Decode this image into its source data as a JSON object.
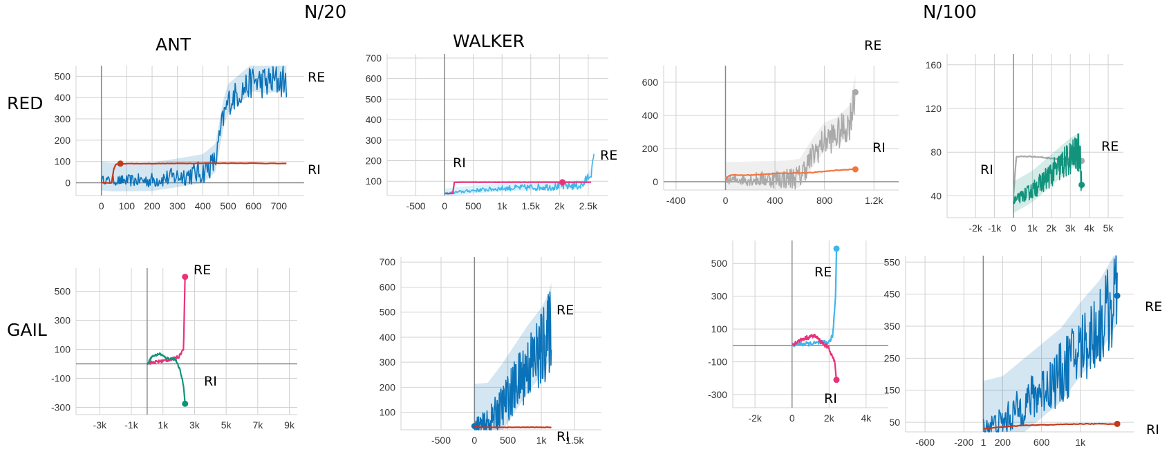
{
  "headers": {
    "n20": "N/20",
    "n100": "N/100",
    "ant": "ANT",
    "walker": "WALKER",
    "red": "RED",
    "gail": "GAIL"
  },
  "colors": {
    "blue": "#0a72b8",
    "light_blue": "#3db6ea",
    "dark_red": "#c4391a",
    "pink": "#e8337a",
    "teal": "#12937c",
    "gray": "#a9a9a9",
    "orange": "#f2753f",
    "grid": "#d0d0d0",
    "axis": "#888888"
  },
  "chart_data": [
    {
      "id": "ant-red",
      "type": "line",
      "xlim": [
        -100,
        800
      ],
      "ylim": [
        -60,
        550
      ],
      "xticks": [
        "0",
        "100",
        "200",
        "300",
        "400",
        "500",
        "600",
        "700"
      ],
      "yticks": [
        "0",
        "100",
        "200",
        "300",
        "400",
        "500"
      ],
      "annotations": [
        "RE",
        "RI"
      ],
      "series": [
        {
          "label": "RE",
          "color": "blue",
          "noisy": true,
          "noise": 70,
          "marker_x": 75,
          "points": [
            [
              0,
              15
            ],
            [
              40,
              10
            ],
            [
              75,
              10
            ],
            [
              200,
              12
            ],
            [
              300,
              30
            ],
            [
              400,
              50
            ],
            [
              450,
              100
            ],
            [
              480,
              300
            ],
            [
              500,
              380
            ],
            [
              550,
              430
            ],
            [
              600,
              480
            ],
            [
              650,
              470
            ],
            [
              700,
              480
            ],
            [
              730,
              480
            ]
          ]
        },
        {
          "label": "RI",
          "color": "dark_red",
          "noise": 2,
          "marker_x": 75,
          "points": [
            [
              0,
              0
            ],
            [
              45,
              0
            ],
            [
              50,
              85
            ],
            [
              75,
              90
            ],
            [
              200,
              90
            ],
            [
              400,
              92
            ],
            [
              600,
              92
            ],
            [
              730,
              90
            ]
          ]
        }
      ]
    },
    {
      "id": "walker-red",
      "type": "line",
      "xlim": [
        -1000,
        2850
      ],
      "ylim": [
        30,
        720
      ],
      "xticks": [
        "-500",
        "0",
        "500",
        "1k",
        "1.5k",
        "2k",
        "2.5k"
      ],
      "yticks": [
        "100",
        "200",
        "300",
        "400",
        "500",
        "600",
        "700"
      ],
      "annotations": [
        "RI",
        "RE"
      ],
      "series": [
        {
          "label": "RE",
          "color": "light_blue",
          "noisy": true,
          "noise": 20,
          "points": [
            [
              0,
              40
            ],
            [
              500,
              55
            ],
            [
              1000,
              65
            ],
            [
              1500,
              70
            ],
            [
              2000,
              75
            ],
            [
              2400,
              80
            ],
            [
              2550,
              140
            ],
            [
              2600,
              220
            ]
          ]
        },
        {
          "label": "RI",
          "color": "pink",
          "noise": 1,
          "marker_x": 2050,
          "points": [
            [
              0,
              40
            ],
            [
              150,
              40
            ],
            [
              170,
              95
            ],
            [
              1000,
              95
            ],
            [
              2050,
              95
            ],
            [
              2550,
              95
            ]
          ]
        }
      ]
    },
    {
      "id": "n100-red-1",
      "type": "line",
      "xlim": [
        -500,
        1400
      ],
      "ylim": [
        -50,
        700
      ],
      "xticks": [
        "-400",
        "0",
        "400",
        "800",
        "1.2k"
      ],
      "yticks": [
        "0",
        "200",
        "400",
        "600"
      ],
      "annotations": [
        "RE",
        "RI"
      ],
      "series": [
        {
          "label": "RE",
          "color": "gray",
          "noisy": true,
          "noise": 90,
          "marker_x": 1050,
          "points": [
            [
              0,
              10
            ],
            [
              500,
              20
            ],
            [
              600,
              30
            ],
            [
              700,
              150
            ],
            [
              800,
              250
            ],
            [
              900,
              280
            ],
            [
              1000,
              350
            ],
            [
              1050,
              540
            ]
          ]
        },
        {
          "label": "RI",
          "color": "orange",
          "noise": 4,
          "marker_x": 1050,
          "points": [
            [
              0,
              10
            ],
            [
              30,
              40
            ],
            [
              200,
              40
            ],
            [
              400,
              50
            ],
            [
              700,
              55
            ],
            [
              900,
              70
            ],
            [
              1050,
              75
            ]
          ]
        }
      ]
    },
    {
      "id": "n100-red-2",
      "type": "line",
      "xlim": [
        -3500,
        5800
      ],
      "ylim": [
        20,
        170
      ],
      "xticks": [
        "-2k",
        "-1k",
        "0",
        "1k",
        "2k",
        "3k",
        "4k",
        "5k"
      ],
      "yticks": [
        "40",
        "80",
        "120",
        "160"
      ],
      "annotations": [
        "RI",
        "RE"
      ],
      "series": [
        {
          "label": "RI",
          "color": "gray",
          "noise": 1,
          "marker_x": 3600,
          "points": [
            [
              0,
              40
            ],
            [
              150,
              76
            ],
            [
              1000,
              76
            ],
            [
              3600,
              72
            ]
          ]
        },
        {
          "label": "RE",
          "color": "teal",
          "noisy": true,
          "noise": 15,
          "marker_x": 3600,
          "points": [
            [
              0,
              35
            ],
            [
              1000,
              45
            ],
            [
              2000,
              60
            ],
            [
              3000,
              75
            ],
            [
              3500,
              80
            ],
            [
              3600,
              50
            ]
          ]
        }
      ]
    },
    {
      "id": "ant-gail",
      "type": "line",
      "xlim": [
        -4500,
        9500
      ],
      "ylim": [
        -350,
        660
      ],
      "xticks": [
        "-3k",
        "-1k",
        "1k",
        "3k",
        "5k",
        "7k",
        "9k"
      ],
      "yticks": [
        "500",
        "300",
        "100",
        "-100",
        "-300"
      ],
      "annotations": [
        "RE",
        "RI"
      ],
      "series": [
        {
          "label": "RE",
          "color": "pink",
          "noise": 20,
          "marker_x": 2400,
          "points": [
            [
              0,
              5
            ],
            [
              1000,
              20
            ],
            [
              1500,
              30
            ],
            [
              2000,
              50
            ],
            [
              2300,
              100
            ],
            [
              2400,
              600
            ]
          ]
        },
        {
          "label": "RI",
          "color": "teal",
          "noise": 15,
          "marker_x": 2400,
          "points": [
            [
              0,
              0
            ],
            [
              300,
              50
            ],
            [
              800,
              70
            ],
            [
              1200,
              40
            ],
            [
              1800,
              30
            ],
            [
              2100,
              -50
            ],
            [
              2300,
              -150
            ],
            [
              2400,
              -275
            ]
          ]
        }
      ]
    },
    {
      "id": "walker-gail",
      "type": "line",
      "xlim": [
        -1100,
        1900
      ],
      "ylim": [
        30,
        720
      ],
      "xticks": [
        "-500",
        "0",
        "500",
        "1k",
        "1.5k"
      ],
      "yticks": [
        "100",
        "200",
        "300",
        "400",
        "500",
        "600",
        "700"
      ],
      "annotations": [
        "RE",
        "RI"
      ],
      "series": [
        {
          "label": "RE",
          "color": "blue",
          "noisy": true,
          "noise": 140,
          "marker_x": 0,
          "points": [
            [
              0,
              45
            ],
            [
              200,
              50
            ],
            [
              400,
              120
            ],
            [
              600,
              200
            ],
            [
              800,
              280
            ],
            [
              1000,
              350
            ],
            [
              1100,
              400
            ],
            [
              1150,
              450
            ]
          ]
        },
        {
          "label": "RI",
          "color": "dark_red",
          "noise": 2,
          "points": [
            [
              0,
              45
            ],
            [
              100,
              40
            ],
            [
              400,
              40
            ],
            [
              1150,
              40
            ]
          ]
        }
      ]
    },
    {
      "id": "n100-gail-1",
      "type": "line",
      "xlim": [
        -3200,
        5200
      ],
      "ylim": [
        -380,
        640
      ],
      "xticks": [
        "-2k",
        "0",
        "2k",
        "4k"
      ],
      "yticks": [
        "500",
        "300",
        "100",
        "-100",
        "-300"
      ],
      "annotations": [
        "RE",
        "RI"
      ],
      "series": [
        {
          "label": "RE",
          "color": "light_blue",
          "noise": 25,
          "marker_x": 2400,
          "points": [
            [
              0,
              5
            ],
            [
              1000,
              10
            ],
            [
              2000,
              20
            ],
            [
              2200,
              60
            ],
            [
              2350,
              300
            ],
            [
              2400,
              590
            ]
          ]
        },
        {
          "label": "RI",
          "color": "pink",
          "noise": 25,
          "marker_x": 2400,
          "points": [
            [
              0,
              5
            ],
            [
              600,
              40
            ],
            [
              1200,
              60
            ],
            [
              1600,
              20
            ],
            [
              2000,
              -20
            ],
            [
              2300,
              -100
            ],
            [
              2400,
              -210
            ]
          ]
        }
      ]
    },
    {
      "id": "n100-gail-2",
      "type": "line",
      "xlim": [
        -800,
        1550
      ],
      "ylim": [
        20,
        570
      ],
      "xticks": [
        "-600",
        "-200",
        "200",
        "600",
        "1k",
        "1"
      ],
      "yticks": [
        "550",
        "450",
        "350",
        "250",
        "150",
        "50"
      ],
      "annotations": [
        "RE",
        "RI"
      ],
      "series": [
        {
          "label": "RE",
          "color": "blue",
          "noisy": true,
          "noise": 120,
          "marker_x": 1380,
          "points": [
            [
              0,
              35
            ],
            [
              200,
              50
            ],
            [
              400,
              100
            ],
            [
              600,
              150
            ],
            [
              800,
              200
            ],
            [
              1000,
              280
            ],
            [
              1200,
              350
            ],
            [
              1380,
              445
            ]
          ]
        },
        {
          "label": "RI",
          "color": "dark_red",
          "noise": 2,
          "marker_x": 1380,
          "points": [
            [
              0,
              30
            ],
            [
              400,
              40
            ],
            [
              1000,
              45
            ],
            [
              1380,
              45
            ]
          ]
        }
      ]
    }
  ]
}
